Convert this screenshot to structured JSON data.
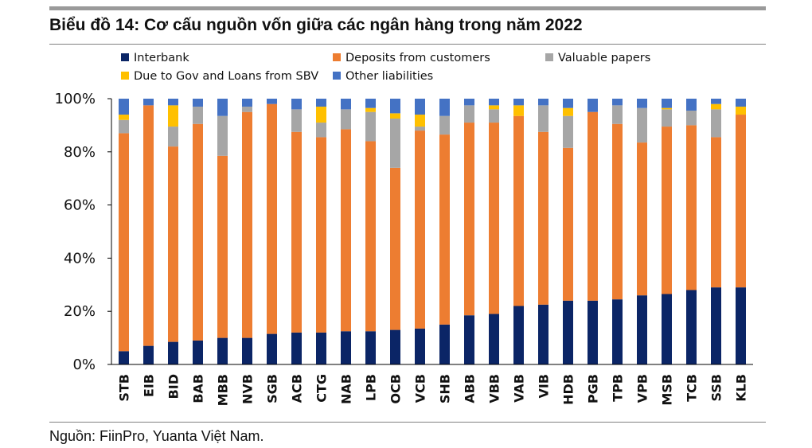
{
  "header": {
    "title": "Biểu đồ 14: Cơ cấu nguồn vốn giữa các ngân hàng trong năm 2022"
  },
  "footer": {
    "source": "Nguồn: FiinPro, Yuanta Việt Nam."
  },
  "chart_data": {
    "type": "bar",
    "stacked": true,
    "grid": false,
    "legend_position": "top",
    "ylim": [
      0,
      100
    ],
    "yticks": [
      "0%",
      "20%",
      "40%",
      "60%",
      "80%",
      "100%"
    ],
    "categories": [
      "STB",
      "EIB",
      "BID",
      "BAB",
      "MBB",
      "NVB",
      "SGB",
      "ACB",
      "CTG",
      "NAB",
      "LPB",
      "OCB",
      "VCB",
      "SHB",
      "ABB",
      "VBB",
      "VAB",
      "VIB",
      "HDB",
      "PGB",
      "TPB",
      "VPB",
      "MSB",
      "TCB",
      "SSB",
      "KLB"
    ],
    "series": [
      {
        "name": "Interbank",
        "color": "#0b2566",
        "values": [
          5,
          7,
          8.5,
          9,
          10,
          10,
          11.5,
          12,
          12,
          12.5,
          12.5,
          13,
          13.5,
          15,
          18.5,
          19,
          22,
          22.5,
          24,
          24,
          24.5,
          26,
          26.5,
          28,
          29,
          29
        ]
      },
      {
        "name": "Deposits from customers",
        "color": "#ed7d31",
        "values": [
          82,
          90.5,
          73.5,
          81.5,
          68.5,
          85,
          86.5,
          75.5,
          73.5,
          76,
          71.5,
          61,
          74.5,
          71.5,
          72.5,
          72,
          71.5,
          65,
          57.5,
          71,
          66,
          57.5,
          63,
          62,
          56.5,
          65
        ]
      },
      {
        "name": "Valuable papers",
        "color": "#a6a6a6",
        "values": [
          5,
          0,
          7.5,
          6.5,
          15,
          2,
          0,
          8.5,
          5.5,
          7.5,
          11,
          18.5,
          1.5,
          7,
          6.5,
          5,
          0,
          10,
          12,
          0,
          7,
          13,
          6.5,
          5.5,
          10.5,
          0
        ]
      },
      {
        "name": "Due to Gov and Loans from SBV",
        "color": "#ffc000",
        "values": [
          2,
          0,
          8,
          0,
          0,
          0,
          0,
          0,
          6,
          0,
          1.5,
          2,
          4.5,
          0,
          0,
          1.5,
          4,
          0,
          3,
          0,
          0,
          0,
          0.5,
          0,
          2,
          3
        ]
      },
      {
        "name": "Other liabilities",
        "color": "#4472c4",
        "values": [
          6,
          2.5,
          2.5,
          3,
          6.5,
          3,
          2,
          4,
          3,
          4,
          3.5,
          5.5,
          6,
          6.5,
          2.5,
          2.5,
          2.5,
          2.5,
          3.5,
          5,
          2.5,
          3.5,
          3.5,
          4.5,
          2,
          3
        ]
      }
    ]
  }
}
